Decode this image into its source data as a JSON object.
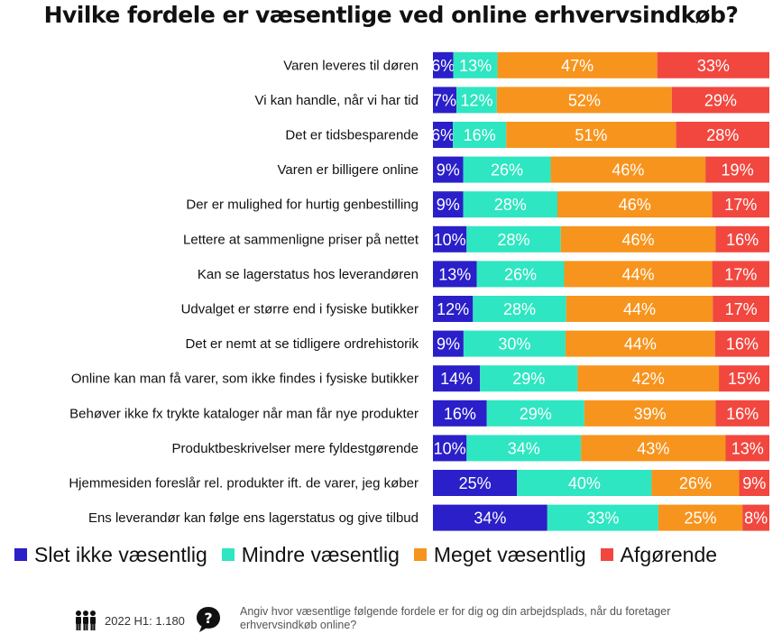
{
  "chart_data": {
    "type": "bar",
    "orientation": "horizontal",
    "stacked": true,
    "title": "Hvilke fordele er væsentlige ved online erhvervsindkøb?",
    "categories": [
      "Varen leveres til døren",
      "Vi kan handle, når vi har tid",
      "Det er tidsbesparende",
      "Varen er billigere online",
      "Der er mulighed for hurtig genbestilling",
      "Lettere at sammenligne priser på nettet",
      "Kan se lagerstatus hos leverandøren",
      "Udvalget er større end i fysiske butikker",
      "Det er nemt at se tidligere ordrehistorik",
      "Online kan man få varer, som ikke findes i fysiske butikker",
      "Behøver ikke fx trykte kataloger når man får nye produkter",
      "Produktbeskrivelser mere fyldestgørende",
      "Hjemmesiden foreslår rel. produkter ift. de varer, jeg køber",
      "Ens leverandør kan følge ens lagerstatus og give tilbud"
    ],
    "series": [
      {
        "name": "Slet ikke væsentlig",
        "color": "#2a1fc9",
        "values": [
          6,
          7,
          6,
          9,
          9,
          10,
          13,
          12,
          9,
          14,
          16,
          10,
          25,
          34
        ]
      },
      {
        "name": "Mindre væsentlig",
        "color": "#2ee6c1",
        "values": [
          13,
          12,
          16,
          26,
          28,
          28,
          26,
          28,
          30,
          29,
          29,
          34,
          40,
          33
        ]
      },
      {
        "name": "Meget væsentlig",
        "color": "#f7941d",
        "values": [
          47,
          52,
          51,
          46,
          46,
          46,
          44,
          44,
          44,
          42,
          39,
          43,
          26,
          25
        ]
      },
      {
        "name": "Afgørende",
        "color": "#f2473f",
        "values": [
          33,
          29,
          28,
          19,
          17,
          16,
          17,
          17,
          16,
          15,
          16,
          13,
          9,
          8
        ]
      }
    ],
    "value_suffix": "%",
    "legend_position": "bottom",
    "grid": false
  },
  "footer": {
    "sample": "2022 H1: 1.180",
    "question": "Angiv hvor væsentlige følgende fordele er for dig og din arbejdsplads, når du foretager erhvervsindkøb online?",
    "people_icon": "people-icon",
    "question_icon": "question-bubble-icon"
  }
}
